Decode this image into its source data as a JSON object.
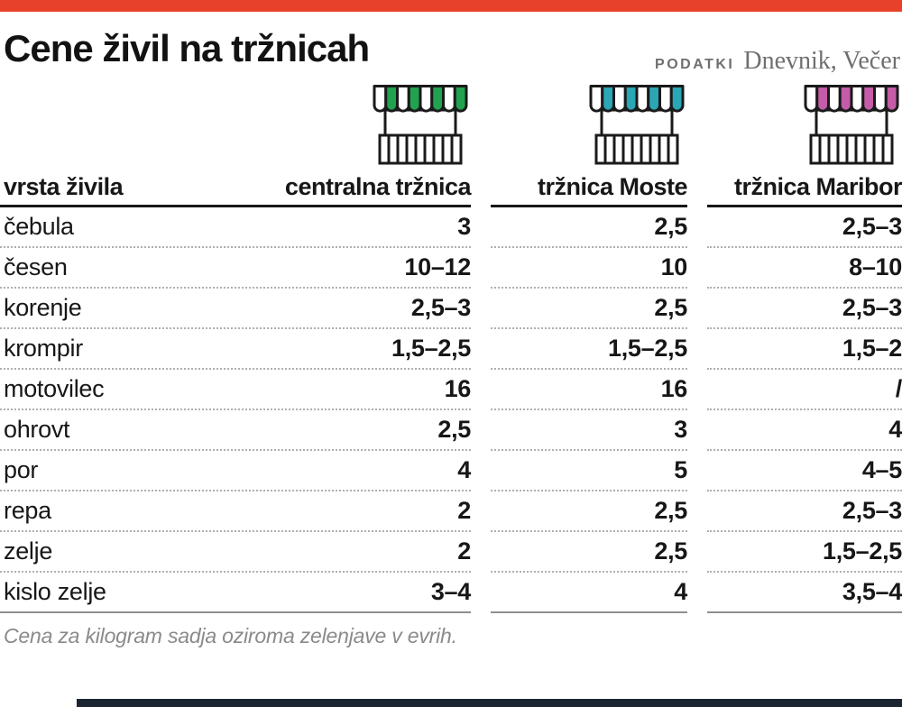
{
  "header": {
    "title": "Cene živil na tržnicah",
    "source_label": "PODATKI",
    "source_publishers": "Dnevnik, Večer"
  },
  "colors": {
    "top_bar": "#e8412b",
    "bottom_bar": "#1b2531",
    "outline": "#1a1a1a",
    "market_central": "#21a24f",
    "market_moste": "#2aa6b5",
    "market_maribor": "#c45ca8"
  },
  "footer": {
    "note": "Cena za kilogram sadja oziroma zelenjave v evrih."
  },
  "chart_data": {
    "type": "table",
    "title": "Cene živil na tržnicah",
    "row_header": "vrsta živila",
    "unit_note": "Cena za kilogram sadja oziroma zelenjave v evrih.",
    "columns": [
      {
        "label": "centralna tržnica",
        "color": "#21a24f"
      },
      {
        "label": "tržnica Moste",
        "color": "#2aa6b5"
      },
      {
        "label": "tržnica Maribor",
        "color": "#c45ca8"
      }
    ],
    "rows": [
      {
        "label": "čebula",
        "values": [
          "3",
          "2,5",
          "2,5–3"
        ]
      },
      {
        "label": "česen",
        "values": [
          "10–12",
          "10",
          "8–10"
        ]
      },
      {
        "label": "korenje",
        "values": [
          "2,5–3",
          "2,5",
          "2,5–3"
        ]
      },
      {
        "label": "krompir",
        "values": [
          "1,5–2,5",
          "1,5–2,5",
          "1,5–2"
        ]
      },
      {
        "label": "motovilec",
        "values": [
          "16",
          "16",
          "/"
        ]
      },
      {
        "label": "ohrovt",
        "values": [
          "2,5",
          "3",
          "4"
        ]
      },
      {
        "label": "por",
        "values": [
          "4",
          "5",
          "4–5"
        ]
      },
      {
        "label": "repa",
        "values": [
          "2",
          "2,5",
          "2,5–3"
        ]
      },
      {
        "label": "zelje",
        "values": [
          "2",
          "2,5",
          "1,5–2,5"
        ]
      },
      {
        "label": "kislo zelje",
        "values": [
          "3–4",
          "4",
          "3,5–4"
        ]
      }
    ]
  }
}
